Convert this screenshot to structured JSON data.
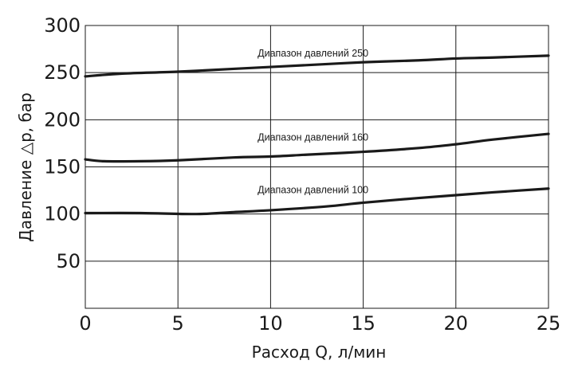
{
  "chart_data": {
    "type": "line",
    "title": "",
    "xlabel": "Расход Q, л/мин",
    "ylabel": "Давление △p, бар",
    "xlim": [
      0,
      25
    ],
    "ylim": [
      0,
      300
    ],
    "x_ticks": [
      "0",
      "5",
      "10",
      "15",
      "20",
      "25"
    ],
    "y_ticks": [
      "50",
      "100",
      "150",
      "200",
      "250",
      "300"
    ],
    "grid": true,
    "line_color": "#1a1a1a",
    "series": [
      {
        "name": "Диапазон давлений 250",
        "label_at": [
          9.3,
          267
        ],
        "points": [
          [
            0,
            246
          ],
          [
            2,
            249
          ],
          [
            5,
            251
          ],
          [
            8,
            254
          ],
          [
            10,
            256
          ],
          [
            12,
            258
          ],
          [
            15,
            261
          ],
          [
            18,
            263
          ],
          [
            20,
            265
          ],
          [
            22,
            266
          ],
          [
            25,
            268
          ]
        ]
      },
      {
        "name": "Диапазон давлений 160",
        "label_at": [
          9.3,
          178
        ],
        "points": [
          [
            0,
            158
          ],
          [
            1,
            156
          ],
          [
            3,
            156
          ],
          [
            5,
            157
          ],
          [
            8,
            160
          ],
          [
            10,
            161
          ],
          [
            12,
            163
          ],
          [
            15,
            166
          ],
          [
            18,
            170
          ],
          [
            20,
            174
          ],
          [
            22,
            179
          ],
          [
            25,
            185
          ]
        ]
      },
      {
        "name": "Диапазон давлений 100",
        "label_at": [
          9.3,
          122
        ],
        "points": [
          [
            0,
            101
          ],
          [
            3,
            101
          ],
          [
            6,
            100
          ],
          [
            8,
            102
          ],
          [
            10,
            104
          ],
          [
            13,
            108
          ],
          [
            15,
            112
          ],
          [
            18,
            117
          ],
          [
            20,
            120
          ],
          [
            22,
            123
          ],
          [
            25,
            127
          ]
        ]
      }
    ]
  }
}
